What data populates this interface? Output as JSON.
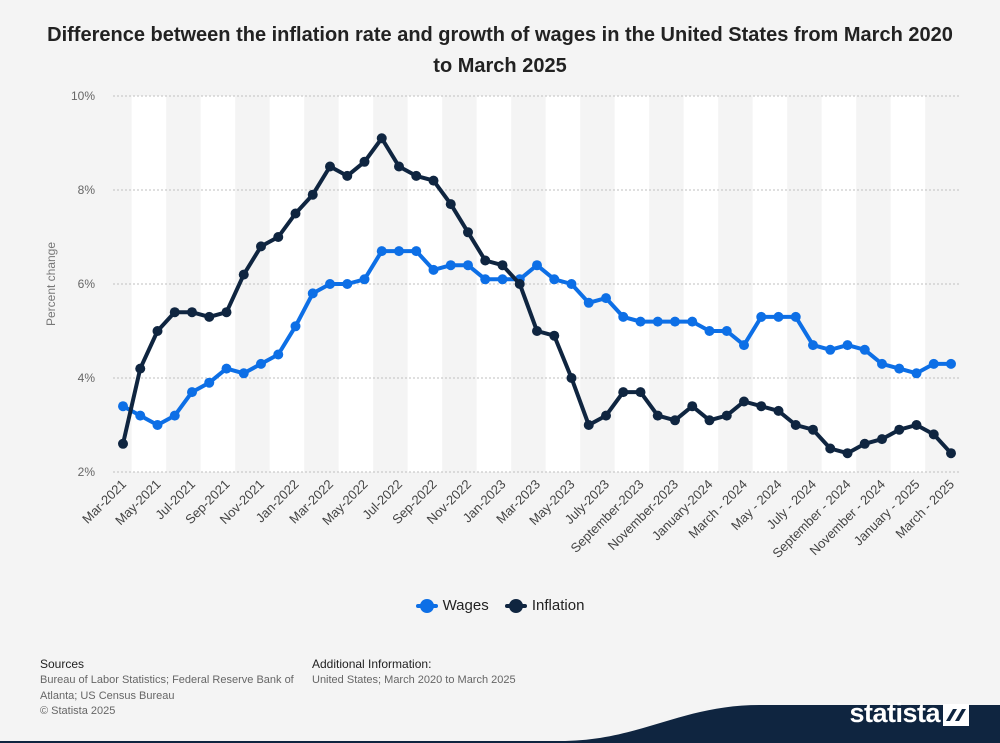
{
  "header": {
    "title": "Difference between the inflation rate and growth of wages in the United States from March 2020 to March 2025"
  },
  "colors": {
    "wages": "#0d6fe6",
    "inflation": "#0f2540",
    "grid": "#bfbfbf",
    "band": "#ffffff",
    "background": "#f4f4f4",
    "brand_dark": "#0f2540"
  },
  "chart_data": {
    "type": "line",
    "ylabel": "Percent change",
    "ylim": [
      2,
      10
    ],
    "yticks": [
      "2%",
      "4%",
      "6%",
      "8%",
      "10%"
    ],
    "y_tick_values": [
      2,
      4,
      6,
      8,
      10
    ],
    "grid": true,
    "legend_position": "bottom-center",
    "categories": [
      "Mar-2021",
      "Apr-2021",
      "May-2021",
      "Jun-2021",
      "Jul-2021",
      "Aug-2021",
      "Sep-2021",
      "Oct-2021",
      "Nov-2021",
      "Dec-2021",
      "Jan-2022",
      "Feb-2022",
      "Mar-2022",
      "Apr-2022",
      "May-2022",
      "Jun-2022",
      "Jul-2022",
      "Aug-2022",
      "Sep-2022",
      "Oct-2022",
      "Nov-2022",
      "Dec-2022",
      "Jan-2023",
      "Feb-2023",
      "Mar-2023",
      "Apr-2023",
      "May-2023",
      "June-2023",
      "July-2023",
      "August-2023",
      "September-2023",
      "October-2023",
      "November-2023",
      "December-2023",
      "January-2024",
      "February-2024",
      "March - 2024",
      "April - 2024",
      "May - 2024",
      "June - 2024",
      "July - 2024",
      "August - 2024",
      "September - 2024",
      "October - 2024",
      "November - 2024",
      "December - 2024",
      "January - 2025",
      "February - 2025",
      "March - 2025"
    ],
    "x_tick_labels": [
      "Mar-2021",
      "May-2021",
      "Jul-2021",
      "Sep-2021",
      "Nov-2021",
      "Jan-2022",
      "Mar-2022",
      "May-2022",
      "Jul-2022",
      "Sep-2022",
      "Nov-2022",
      "Jan-2023",
      "Mar-2023",
      "May-2023",
      "July-2023",
      "September-2023",
      "November-2023",
      "January-2024",
      "March - 2024",
      "May - 2024",
      "July - 2024",
      "September - 2024",
      "November - 2024",
      "January - 2025",
      "March - 2025"
    ],
    "series": [
      {
        "name": "Wages",
        "values": [
          3.4,
          3.2,
          3.0,
          3.2,
          3.7,
          3.9,
          4.2,
          4.1,
          4.3,
          4.5,
          5.1,
          5.8,
          6.0,
          6.0,
          6.1,
          6.7,
          6.7,
          6.7,
          6.3,
          6.4,
          6.4,
          6.1,
          6.1,
          6.1,
          6.4,
          6.1,
          6.0,
          5.6,
          5.7,
          5.3,
          5.2,
          5.2,
          5.2,
          5.2,
          5.0,
          5.0,
          4.7,
          5.3,
          5.3,
          5.3,
          4.7,
          4.6,
          4.7,
          4.6,
          4.3,
          4.2,
          4.1,
          4.3,
          4.3
        ]
      },
      {
        "name": "Inflation",
        "values": [
          2.6,
          4.2,
          5.0,
          5.4,
          5.4,
          5.3,
          5.4,
          6.2,
          6.8,
          7.0,
          7.5,
          7.9,
          8.5,
          8.3,
          8.6,
          9.1,
          8.5,
          8.3,
          8.2,
          7.7,
          7.1,
          6.5,
          6.4,
          6.0,
          5.0,
          4.9,
          4.0,
          3.0,
          3.2,
          3.7,
          3.7,
          3.2,
          3.1,
          3.4,
          3.1,
          3.2,
          3.5,
          3.4,
          3.3,
          3.0,
          2.9,
          2.5,
          2.4,
          2.6,
          2.7,
          2.9,
          3.0,
          2.8,
          2.4
        ]
      }
    ]
  },
  "footer": {
    "sources_heading": "Sources",
    "sources_text": "Bureau of Labor Statistics; Federal Reserve Bank of Atlanta; US Census Bureau",
    "additional_heading": "Additional Information:",
    "additional_text": "United States; March 2020 to March 2025",
    "copyright": "© Statista 2025"
  },
  "brand": {
    "name": "statista"
  }
}
